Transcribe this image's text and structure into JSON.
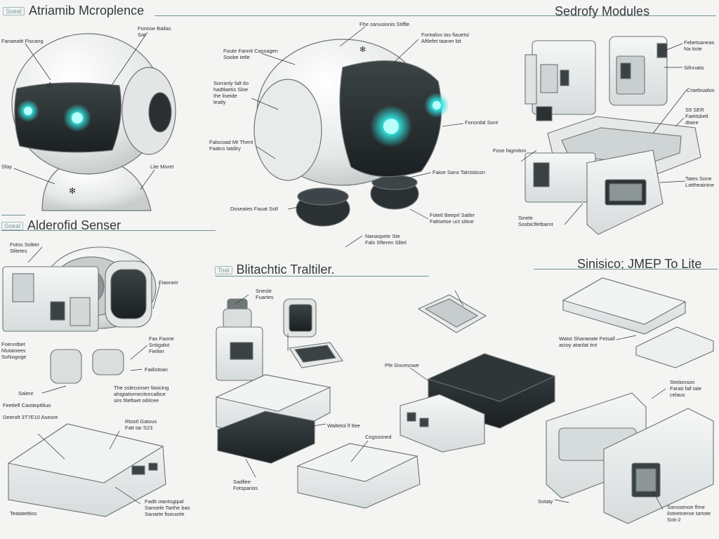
{
  "sections": {
    "atriamib": {
      "tag": "Soeal",
      "title": "Atriamib Mcroplence"
    },
    "sedrofy": {
      "title": "Sedrofy Modules"
    },
    "alderofid": {
      "tag": "Soeal",
      "title": "Alderofid Senser"
    },
    "blitachtic": {
      "tag": "Toal",
      "title": "Blitachtic Traltiler."
    },
    "sinisico": {
      "title": "Sinisico; JMEP To Lite"
    }
  },
  "callouts": {
    "a1": "Fonose Bailas\nSat",
    "a2": "Fanaeaitt Fiscang",
    "a3": "Sfay",
    "a4": "Lite Moret",
    "c1": "Fhe sanusionis Stiffle",
    "c2": "Fontaliss tas fiauetsi\nAftlefet taaner bit",
    "c3": "Foute Fannit Cassagen\nSoobe tetle",
    "c4": "Sorranly falt tio\nhadtlaetis Sloe\nthe liseide\nleatly",
    "c5": "Falocoad Mt Thent\nFaatcs tatdiry",
    "c6": "Fonordal Sont",
    "c7": "Faioe Sans Talctsticon",
    "c8": "Doseates Fauat Sstf",
    "c9": "Fotetl Beeprl Satler\nFattsetse uct sitine",
    "c10": "Nanaspete Ste\nFals Sfteren Slitel",
    "s1": "Febetsaneas\nNa tinte",
    "s2": "Sifnnatis",
    "s3": "Craebsailos",
    "s4": "S9 SER\nFaeitsbetl\ndtaire",
    "s5": "Fose fagmiton",
    "s6": "Tates Sone\nLattheainine",
    "s7": "Sinele\nSosbiclfetbarnt",
    "d1": "Fotos Soltier\nSlitetes",
    "d2": "Fiaorarir",
    "d3": "Fas Faone\nSntigalot\nFieliier",
    "d4": "Foenntbet\nhfutainees\nSoNogoge",
    "d5": "Fadistoan",
    "d6": "Salenr",
    "d7": "Feetlefl Caotiepttliuo",
    "d8": "The ssleconser fasicing\nahigiatiomecitorcaltice\nsirs fiteftaet oiblcee",
    "d9": "Deeroft 3T7E10 Aseore",
    "d10": "Rtostl Gatous\nFatt tar S23",
    "d11": "Fadtt otantsgipal\nSanoele Tarthe bas\nSanarte fiseuorle",
    "d12": "Teatatettios",
    "b1": "Snesle\nFuartes",
    "b2": "Pfe Gocesnwe",
    "b3": "Waltetol lf tlee",
    "b4": "Cogsssned",
    "b5": "Sadllee\nFotsparios",
    "j1": "Watst Sharaeate Fetsall\nacioy atanlat tint",
    "j2": "Stetionson\nFarati fall tale\ncelaus",
    "j3": "Sotaty",
    "j4": "Sanssenoe flme\nilsteetneroe tartote\nSoti-2"
  },
  "colors": {
    "glow": "#31e0dc",
    "visor": "#202628",
    "shell": "#eef0ef",
    "outline": "#6d7375",
    "rule": "#6f8f95"
  }
}
